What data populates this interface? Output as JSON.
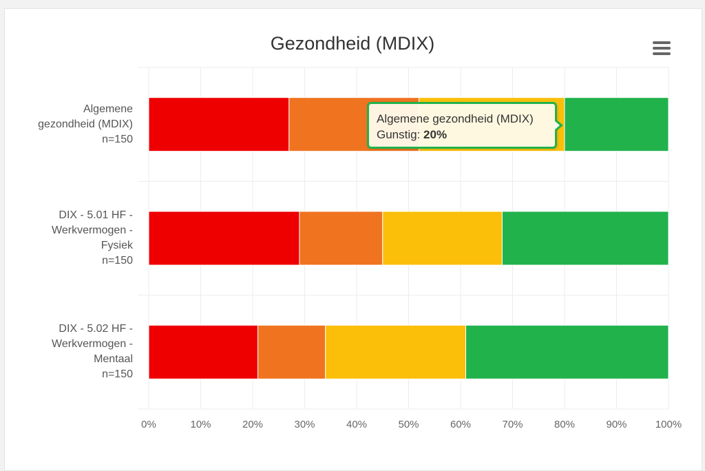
{
  "chart": {
    "title": "Gezondheid (MDIX)",
    "menu_icon": "hamburger-menu-icon"
  },
  "tooltip": {
    "category": "Algemene gezondheid (MDIX)",
    "series": "Gunstig:",
    "value": "20%",
    "border_color": "#22b24c"
  },
  "chart_data": {
    "type": "bar",
    "orientation": "horizontal",
    "stacking": "percent",
    "title": "Gezondheid (MDIX)",
    "categories": [
      [
        "Algemene",
        "gezondheid (MDIX)",
        "n=150"
      ],
      [
        "DIX - 5.01 HF -",
        "Werkvermogen -",
        "Fysiek",
        "n=150"
      ],
      [
        "DIX - 5.02 HF -",
        "Werkvermogen -",
        "Mentaal",
        "n=150"
      ]
    ],
    "series": [
      {
        "color": "#ee0000",
        "values": [
          27,
          29,
          21
        ]
      },
      {
        "color": "#f07320",
        "values": [
          25,
          16,
          13
        ]
      },
      {
        "color": "#fbbf0a",
        "values": [
          28,
          23,
          27
        ]
      },
      {
        "name": "Gunstig",
        "color": "#22b24c",
        "values": [
          20,
          32,
          39
        ]
      }
    ],
    "xlim": [
      0,
      100
    ],
    "x_ticks": [
      "0%",
      "10%",
      "20%",
      "30%",
      "40%",
      "50%",
      "60%",
      "70%",
      "80%",
      "90%",
      "100%"
    ],
    "grid": true,
    "legend": "none",
    "highlight": {
      "category_index": 0,
      "series_index": 3
    }
  }
}
